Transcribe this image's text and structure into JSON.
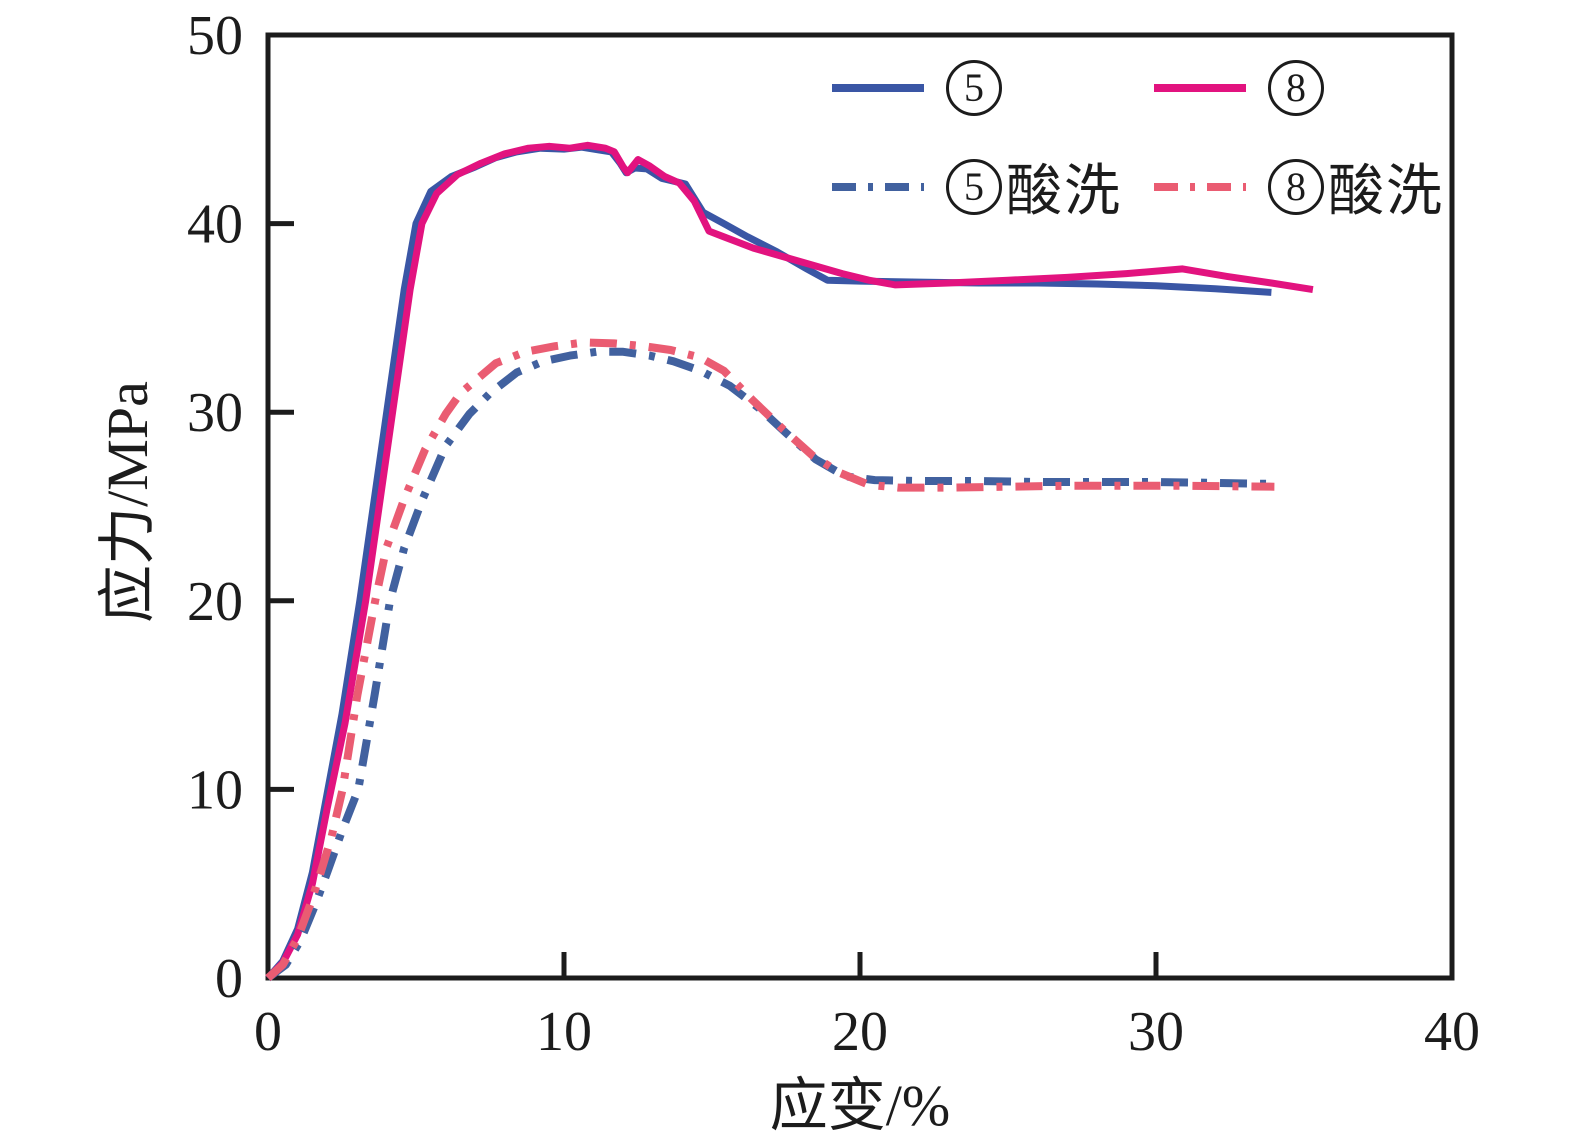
{
  "figure": {
    "background": "#ffffff",
    "axis_color": "#1c1c1c"
  },
  "legend": {
    "items": [
      {
        "id": "5",
        "digit": "5",
        "suffix": "",
        "color": "#3A56A5",
        "dash": null
      },
      {
        "id": "8",
        "digit": "8",
        "suffix": "",
        "color": "#E2137F",
        "dash": null
      },
      {
        "id": "5-suanxi",
        "digit": "5",
        "suffix": "酸洗",
        "color": "#41619F",
        "dash": "24 12 5 12"
      },
      {
        "id": "8-suanxi",
        "digit": "8",
        "suffix": "酸洗",
        "color": "#EA5C72",
        "dash": "24 12 5 12"
      }
    ]
  },
  "chart_data": {
    "type": "line",
    "title": "",
    "xlabel": "应变/%",
    "ylabel": "应力/MPa",
    "xlim": [
      0,
      40
    ],
    "ylim": [
      0,
      50
    ],
    "x_ticks": [
      0,
      10,
      20,
      30,
      40
    ],
    "x_tick_labels": [
      "0",
      "10",
      "20",
      "30",
      "40"
    ],
    "y_ticks": [
      0,
      10,
      20,
      30,
      40,
      50
    ],
    "y_tick_labels": [
      "0",
      "10",
      "20",
      "30",
      "40",
      "50"
    ],
    "grid": false,
    "legend_position": "upper right inside",
    "series": [
      {
        "id": "5",
        "name": "⑤",
        "style": "solid",
        "color": "#3A56A5",
        "points": [
          [
            0,
            0
          ],
          [
            0.5,
            0.9
          ],
          [
            1,
            2.6
          ],
          [
            1.5,
            5.6
          ],
          [
            2,
            9.8
          ],
          [
            2.5,
            14
          ],
          [
            3.1,
            20
          ],
          [
            3.6,
            25.5
          ],
          [
            4.1,
            31
          ],
          [
            4.6,
            36.5
          ],
          [
            5,
            40
          ],
          [
            5.5,
            41.7
          ],
          [
            6.2,
            42.5
          ],
          [
            7,
            43
          ],
          [
            7.7,
            43.5
          ],
          [
            8.4,
            43.8
          ],
          [
            9.2,
            44
          ],
          [
            10,
            43.95
          ],
          [
            10.6,
            44.05
          ],
          [
            11.2,
            43.9
          ],
          [
            11.6,
            43.8
          ],
          [
            11.9,
            43.2
          ],
          [
            12.1,
            42.7
          ],
          [
            12.4,
            42.95
          ],
          [
            12.8,
            42.9
          ],
          [
            13.3,
            42.4
          ],
          [
            14.1,
            42.1
          ],
          [
            14.7,
            40.6
          ],
          [
            15.4,
            40
          ],
          [
            16.2,
            39.3
          ],
          [
            17.2,
            38.5
          ],
          [
            18.2,
            37.6
          ],
          [
            18.9,
            37
          ],
          [
            20,
            36.95
          ],
          [
            22,
            36.9
          ],
          [
            24,
            36.85
          ],
          [
            26,
            36.85
          ],
          [
            28,
            36.8
          ],
          [
            30,
            36.7
          ],
          [
            32,
            36.55
          ],
          [
            33.9,
            36.35
          ]
        ]
      },
      {
        "id": "8",
        "name": "⑧",
        "style": "solid",
        "color": "#E2137F",
        "points": [
          [
            0,
            0
          ],
          [
            0.5,
            0.8
          ],
          [
            1,
            2.3
          ],
          [
            1.5,
            5
          ],
          [
            2,
            9
          ],
          [
            2.6,
            13.5
          ],
          [
            3.3,
            20
          ],
          [
            3.8,
            25.5
          ],
          [
            4.3,
            31
          ],
          [
            4.8,
            36.5
          ],
          [
            5.2,
            40
          ],
          [
            5.7,
            41.6
          ],
          [
            6.4,
            42.6
          ],
          [
            7.2,
            43.2
          ],
          [
            8,
            43.7
          ],
          [
            8.8,
            44
          ],
          [
            9.5,
            44.1
          ],
          [
            10.2,
            44
          ],
          [
            10.8,
            44.15
          ],
          [
            11.4,
            44
          ],
          [
            11.7,
            43.8
          ],
          [
            12,
            43
          ],
          [
            12.15,
            42.7
          ],
          [
            12.5,
            43.4
          ],
          [
            12.9,
            43.05
          ],
          [
            13.4,
            42.5
          ],
          [
            13.9,
            42.15
          ],
          [
            14.4,
            41.2
          ],
          [
            14.9,
            39.6
          ],
          [
            15.4,
            39.3
          ],
          [
            16.4,
            38.7
          ],
          [
            17.4,
            38.25
          ],
          [
            18.4,
            37.8
          ],
          [
            19.4,
            37.35
          ],
          [
            20.3,
            37
          ],
          [
            21.2,
            36.75
          ],
          [
            23,
            36.85
          ],
          [
            25,
            37
          ],
          [
            27,
            37.15
          ],
          [
            29,
            37.35
          ],
          [
            30.9,
            37.6
          ],
          [
            32.4,
            37.2
          ],
          [
            33.9,
            36.85
          ],
          [
            35.3,
            36.5
          ]
        ]
      },
      {
        "id": "5-suanxi",
        "name": "⑤酸洗",
        "style": "dashdot",
        "color": "#41619F",
        "points": [
          [
            0,
            0
          ],
          [
            0.6,
            0.7
          ],
          [
            1.1,
            2
          ],
          [
            1.6,
            3.9
          ],
          [
            2,
            5.6
          ],
          [
            2.5,
            7.8
          ],
          [
            3.05,
            10
          ],
          [
            3.6,
            15
          ],
          [
            4.12,
            20
          ],
          [
            4.6,
            22.8
          ],
          [
            5.2,
            25.3
          ],
          [
            6,
            28.2
          ],
          [
            6.8,
            29.9
          ],
          [
            7.5,
            31
          ],
          [
            8.4,
            32.1
          ],
          [
            9.3,
            32.7
          ],
          [
            10.2,
            33
          ],
          [
            11.1,
            33.2
          ],
          [
            12,
            33.2
          ],
          [
            12.9,
            33
          ],
          [
            13.7,
            32.7
          ],
          [
            14.6,
            32.2
          ],
          [
            15.6,
            31.4
          ],
          [
            16.6,
            30.2
          ],
          [
            17.5,
            28.9
          ],
          [
            18.5,
            27.5
          ],
          [
            19.5,
            26.6
          ],
          [
            20.5,
            26.4
          ],
          [
            22,
            26.35
          ],
          [
            24,
            26.35
          ],
          [
            26,
            26.3
          ],
          [
            28,
            26.3
          ],
          [
            30,
            26.3
          ],
          [
            32,
            26.25
          ],
          [
            33.9,
            26.2
          ]
        ]
      },
      {
        "id": "8-suanxi",
        "name": "⑧酸洗",
        "style": "dashdot",
        "color": "#EA5C72",
        "points": [
          [
            0,
            0
          ],
          [
            0.5,
            0.7
          ],
          [
            1,
            2.1
          ],
          [
            1.45,
            4
          ],
          [
            1.8,
            5.7
          ],
          [
            2.15,
            7.5
          ],
          [
            2.52,
            10
          ],
          [
            3.02,
            15
          ],
          [
            3.62,
            20
          ],
          [
            4,
            22.8
          ],
          [
            4.6,
            25.4
          ],
          [
            5.3,
            28
          ],
          [
            6,
            29.9
          ],
          [
            6.5,
            31
          ],
          [
            7.7,
            32.6
          ],
          [
            8.7,
            33.2
          ],
          [
            9.7,
            33.5
          ],
          [
            10.7,
            33.7
          ],
          [
            11.7,
            33.65
          ],
          [
            12.7,
            33.5
          ],
          [
            13.6,
            33.3
          ],
          [
            14.6,
            32.9
          ],
          [
            15.4,
            32.2
          ],
          [
            16.4,
            30.6
          ],
          [
            17.4,
            29.1
          ],
          [
            18.4,
            27.7
          ],
          [
            19.3,
            26.8
          ],
          [
            20.3,
            26.15
          ],
          [
            21.3,
            26
          ],
          [
            23,
            26
          ],
          [
            25,
            26.05
          ],
          [
            27,
            26.1
          ],
          [
            29,
            26.1
          ],
          [
            31,
            26.1
          ],
          [
            34,
            26.05
          ]
        ]
      }
    ]
  }
}
